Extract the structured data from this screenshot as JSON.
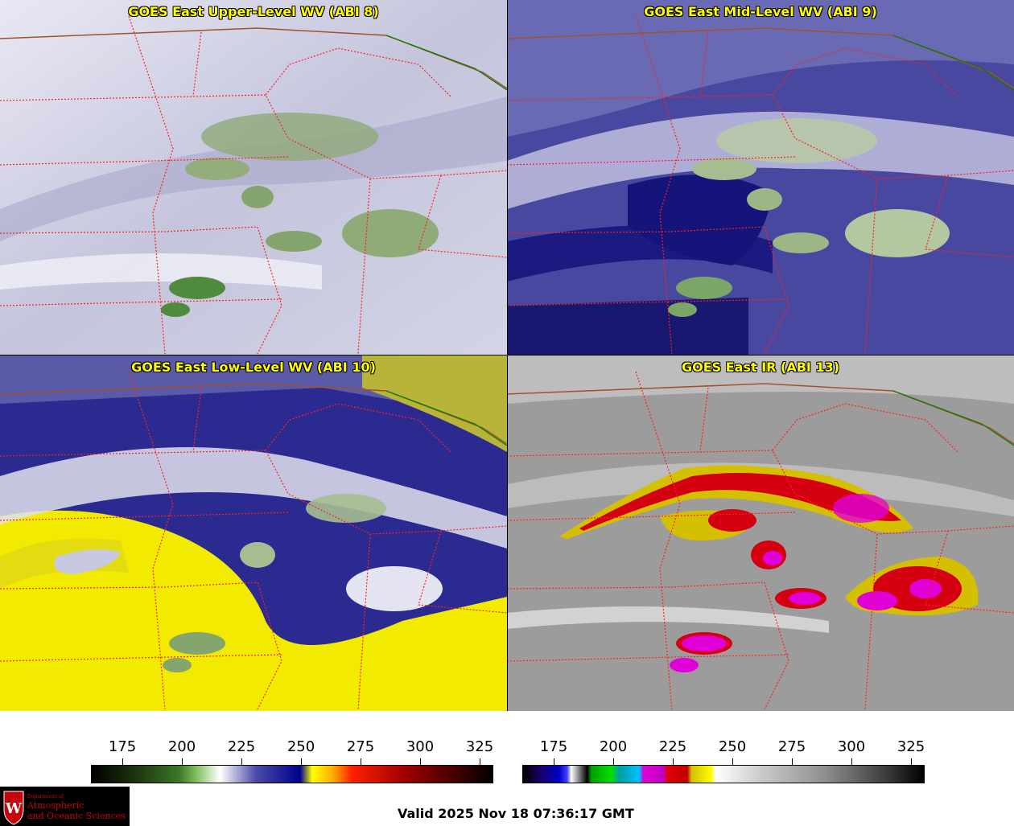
{
  "panels": [
    {
      "title": "GOES East Upper-Level WV (ABI 8)"
    },
    {
      "title": "GOES East Mid-Level WV (ABI 9)"
    },
    {
      "title": "GOES East Low-Level WV (ABI 10)"
    },
    {
      "title": "GOES East IR (ABI 13)"
    }
  ],
  "colorbars": {
    "wv_ticks": [
      "175",
      "200",
      "225",
      "250",
      "275",
      "300",
      "325"
    ],
    "ir_ticks": [
      "175",
      "200",
      "225",
      "250",
      "275",
      "300",
      "325"
    ]
  },
  "logo": {
    "line1": "Department of",
    "line2": "Atmospheric",
    "line3": "and Oceanic Sciences",
    "emblem": "W"
  },
  "valid_time": "Valid 2025 Nov 18 07:36:17 GMT",
  "colors": {
    "title": "#ffff00",
    "state_lines": "#ff2020",
    "border_brown": "#a0522d",
    "border_green": "#008000"
  }
}
